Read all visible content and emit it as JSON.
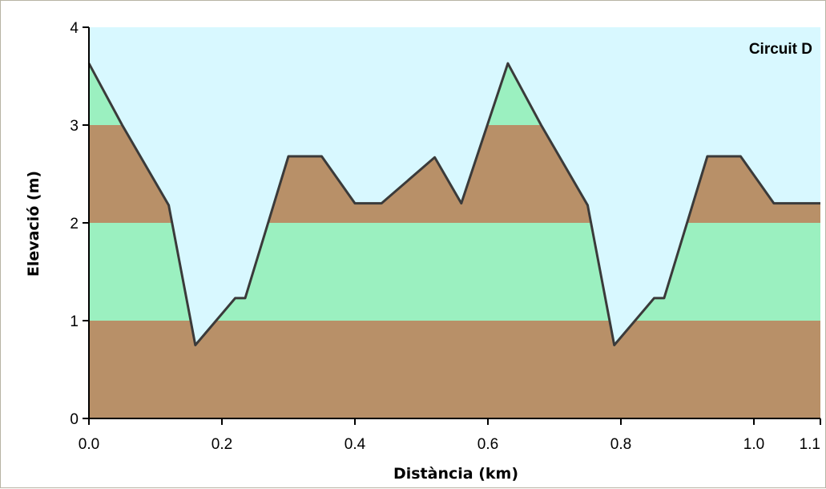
{
  "chart_data": {
    "type": "area",
    "title": "Circuit D",
    "xlabel": "Distància (km)",
    "ylabel": "Elevació (m)",
    "xlim": [
      0,
      1.1
    ],
    "ylim": [
      0,
      4
    ],
    "x_ticks": [
      "0.0",
      "0.2",
      "0.4",
      "0.6",
      "0.8",
      "1.0",
      "1.1"
    ],
    "x_tick_values": [
      0,
      0.2,
      0.4,
      0.6,
      0.8,
      1.0,
      1.1
    ],
    "y_ticks": [
      "0",
      "1",
      "2",
      "3",
      "4"
    ],
    "y_tick_values": [
      0,
      1,
      2,
      3,
      4
    ],
    "band_colors": [
      "#b89068",
      "#9bf0c0"
    ],
    "sky_color": "#d8f8ff",
    "line_color": "#3a3a3a",
    "series": [
      {
        "x": [
          0.0,
          0.05,
          0.12,
          0.16,
          0.22,
          0.235,
          0.3,
          0.35,
          0.4,
          0.44,
          0.52,
          0.56,
          0.63,
          0.68,
          0.75,
          0.79,
          0.85,
          0.865,
          0.93,
          0.98,
          1.03,
          1.075
        ],
        "y": [
          3.63,
          3.0,
          2.18,
          0.75,
          1.23,
          1.23,
          2.68,
          2.68,
          2.2,
          2.2,
          2.67,
          2.2,
          3.63,
          3.0,
          2.18,
          0.75,
          1.23,
          1.23,
          2.68,
          2.68,
          2.2,
          2.2
        ]
      }
    ]
  }
}
